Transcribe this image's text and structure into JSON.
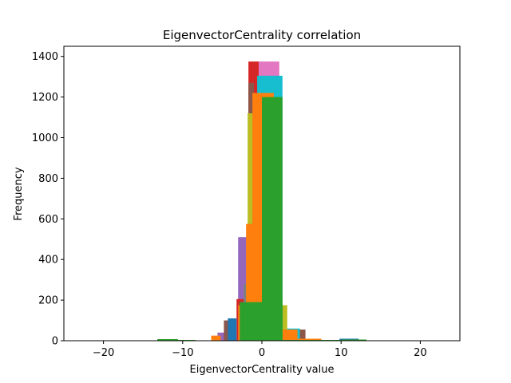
{
  "chart_data": {
    "type": "bar",
    "title": "EigenvectorCentrality correlation",
    "xlabel": "EigenvectorCentrality value",
    "ylabel": "Frequency",
    "xlim": [
      -25,
      25
    ],
    "ylim": [
      0,
      1450
    ],
    "xticks": [
      -20,
      -10,
      0,
      10,
      20
    ],
    "yticks": [
      0,
      200,
      400,
      600,
      800,
      1000,
      1200,
      1400
    ],
    "grid": false,
    "legend": "none",
    "series": [
      {
        "color": "#9467bd",
        "bars": [
          {
            "x0": -5.6,
            "x1": -4.4,
            "value": 40
          },
          {
            "x0": -3.0,
            "x1": -1.7,
            "value": 510
          },
          {
            "x0": -1.7,
            "x1": -0.5,
            "value": 230
          }
        ]
      },
      {
        "color": "#d62728",
        "bars": [
          {
            "x0": -3.2,
            "x1": -2.0,
            "value": 205
          },
          {
            "x0": -1.7,
            "x1": -0.4,
            "value": 1375
          },
          {
            "x0": 2.0,
            "x1": 3.0,
            "value": 10
          }
        ]
      },
      {
        "color": "#8c564b",
        "bars": [
          {
            "x0": -4.8,
            "x1": -3.6,
            "value": 100
          },
          {
            "x0": -1.7,
            "x1": -1.0,
            "value": 1270
          },
          {
            "x0": 4.7,
            "x1": 5.5,
            "value": 55
          }
        ]
      },
      {
        "color": "#e377c2",
        "bars": [
          {
            "x0": -1.3,
            "x1": -0.3,
            "value": 700
          },
          {
            "x0": -0.4,
            "x1": 2.2,
            "value": 1375
          }
        ]
      },
      {
        "color": "#bcbd22",
        "bars": [
          {
            "x0": -1.8,
            "x1": -0.9,
            "value": 1120
          },
          {
            "x0": 1.5,
            "x1": 3.2,
            "value": 175
          }
        ]
      },
      {
        "color": "#17becf",
        "bars": [
          {
            "x0": -0.6,
            "x1": 2.6,
            "value": 1305
          },
          {
            "x0": 3.2,
            "x1": 4.8,
            "value": 60
          }
        ]
      },
      {
        "color": "#7f7f7f",
        "bars": [
          {
            "x0": -2.3,
            "x1": -1.3,
            "value": 280
          },
          {
            "x0": -1.2,
            "x1": -0.6,
            "value": 660
          }
        ]
      },
      {
        "color": "#1f77b4",
        "bars": [
          {
            "x0": -4.3,
            "x1": -3.2,
            "value": 110
          },
          {
            "x0": 3.4,
            "x1": 4.2,
            "value": 40
          },
          {
            "x0": 9.8,
            "x1": 12.2,
            "value": 10
          }
        ]
      },
      {
        "color": "#ff7f0e",
        "bars": [
          {
            "x0": -6.4,
            "x1": -5.2,
            "value": 25
          },
          {
            "x0": -3.0,
            "x1": -2.0,
            "value": 175
          },
          {
            "x0": -2.0,
            "x1": -1.0,
            "value": 575
          },
          {
            "x0": -1.2,
            "x1": 1.5,
            "value": 1220
          },
          {
            "x0": 2.6,
            "x1": 4.5,
            "value": 55
          },
          {
            "x0": 4.5,
            "x1": 7.5,
            "value": 10
          }
        ]
      },
      {
        "color": "#2ca02c",
        "bars": [
          {
            "x0": -13.2,
            "x1": -10.6,
            "value": 8
          },
          {
            "x0": -10.6,
            "x1": -8.4,
            "value": 4
          },
          {
            "x0": -2.8,
            "x1": 2.6,
            "value": 190
          },
          {
            "x0": 0.0,
            "x1": 2.6,
            "value": 1200
          },
          {
            "x0": 2.6,
            "x1": 10.0,
            "value": 4
          },
          {
            "x0": 10.0,
            "x1": 13.2,
            "value": 6
          }
        ]
      }
    ]
  }
}
